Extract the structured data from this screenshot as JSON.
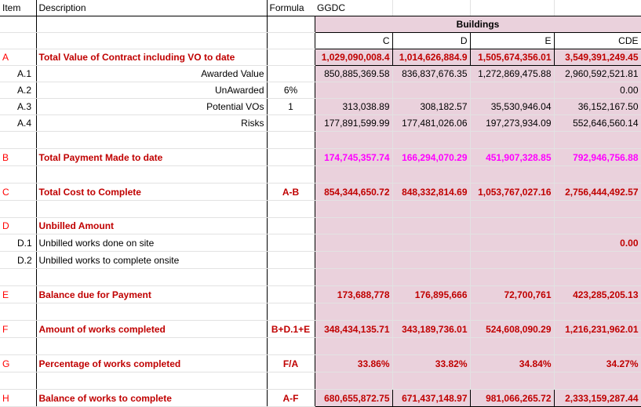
{
  "headers": {
    "item": "Item",
    "description": "Description",
    "formula": "Formula",
    "ggdc": "GGDC",
    "buildings": "Buildings",
    "col_c": "C",
    "col_d": "D",
    "col_e": "E",
    "col_cde": "CDE"
  },
  "rows": {
    "A": {
      "item": "A",
      "desc": "Total Value of Contract including VO to date",
      "formula": "",
      "c": "1,029,090,008.4",
      "d": "1,014,626,884.9",
      "e": "1,505,674,356.01",
      "cde": "3,549,391,249.45"
    },
    "A1": {
      "item": "A.1",
      "desc": "Awarded Value",
      "formula": "",
      "c": "850,885,369.58",
      "d": "836,837,676.35",
      "e": "1,272,869,475.88",
      "cde": "2,960,592,521.81"
    },
    "A2": {
      "item": "A.2",
      "desc": "UnAwarded",
      "formula": "6%",
      "c": "",
      "d": "",
      "e": "",
      "cde": "0.00"
    },
    "A3": {
      "item": "A.3",
      "desc": "Potential VOs",
      "formula": "1",
      "c": "313,038.89",
      "d": "308,182.57",
      "e": "35,530,946.04",
      "cde": "36,152,167.50"
    },
    "A4": {
      "item": "A.4",
      "desc": "Risks",
      "formula": "",
      "c": "177,891,599.99",
      "d": "177,481,026.06",
      "e": "197,273,934.09",
      "cde": "552,646,560.14"
    },
    "B": {
      "item": "B",
      "desc": "Total Payment Made to date",
      "formula": "",
      "c": "174,745,357.74",
      "d": "166,294,070.29",
      "e": "451,907,328.85",
      "cde": "792,946,756.88"
    },
    "C": {
      "item": "C",
      "desc": "Total Cost to Complete",
      "formula": "A-B",
      "c": "854,344,650.72",
      "d": "848,332,814.69",
      "e": "1,053,767,027.16",
      "cde": "2,756,444,492.57"
    },
    "D": {
      "item": "D",
      "desc": "Unbilled Amount",
      "formula": "",
      "c": "",
      "d": "",
      "e": "",
      "cde": ""
    },
    "D1": {
      "item": "D.1",
      "desc": "Unbilled works done on site",
      "formula": "",
      "c": "",
      "d": "",
      "e": "",
      "cde": "0.00"
    },
    "D2": {
      "item": "D.2",
      "desc": "Unbilled works to complete onsite",
      "formula": "",
      "c": "",
      "d": "",
      "e": "",
      "cde": ""
    },
    "E": {
      "item": "E",
      "desc": "Balance due for Payment",
      "formula": "",
      "c": "173,688,778",
      "d": "176,895,666",
      "e": "72,700,761",
      "cde": "423,285,205.13"
    },
    "F": {
      "item": "F",
      "desc": "Amount of works completed",
      "formula": "B+D.1+E",
      "c": "348,434,135.71",
      "d": "343,189,736.01",
      "e": "524,608,090.29",
      "cde": "1,216,231,962.01"
    },
    "G": {
      "item": "G",
      "desc": "Percentage of works completed",
      "formula": "F/A",
      "c": "33.86%",
      "d": "33.82%",
      "e": "34.84%",
      "cde": "34.27%"
    },
    "H": {
      "item": "H",
      "desc": "Balance of works to complete",
      "formula": "A-F",
      "c": "680,655,872.75",
      "d": "671,437,148.97",
      "e": "981,066,265.72",
      "cde": "2,333,159,287.44"
    }
  }
}
